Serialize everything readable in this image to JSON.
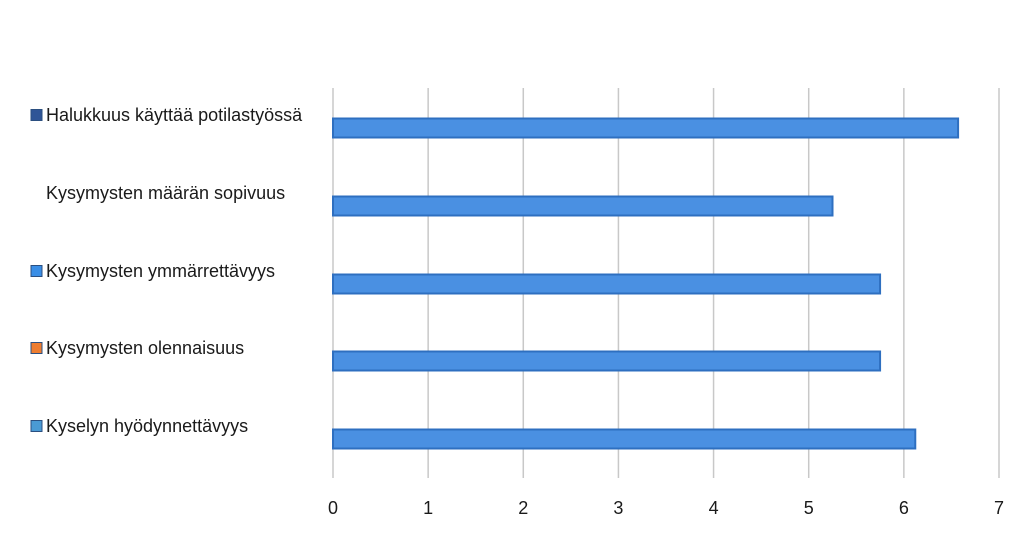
{
  "chart_data": {
    "type": "bar",
    "orientation": "horizontal",
    "title": "",
    "xlabel": "",
    "ylabel": "",
    "categories": [
      "Halukkuus käyttää potilastyössä",
      "Kysymysten määrän sopivuus",
      "Kysymysten ymmärrettävyys",
      "Kysymysten olennaisuus",
      "Kyselyn hyödynnettävyys"
    ],
    "values": [
      6.57,
      5.25,
      5.75,
      5.75,
      6.12
    ],
    "xlim": [
      0,
      7
    ],
    "xticks": [
      "0",
      "1",
      "2",
      "3",
      "4",
      "5",
      "6",
      "7"
    ],
    "grid": true,
    "bar_color": "#4a90e2",
    "bar_edge_color": "#2e6fc0",
    "marker_colors": [
      "#2f5597",
      null,
      "#3a8ee6",
      "#ed7d31",
      "#4a9ad4"
    ]
  }
}
